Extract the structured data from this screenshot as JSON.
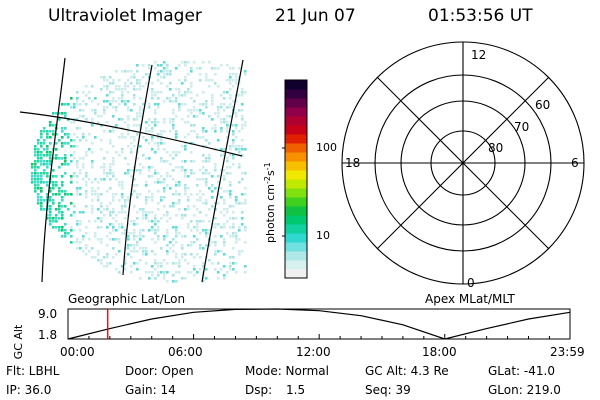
{
  "header": {
    "instrument": "Ultraviolet Imager",
    "date": "21 Jun 07",
    "time": "01:53:56 UT"
  },
  "colorbar": {
    "label_main": "photon cm",
    "label_exp1": "-2",
    "label_mid": "s",
    "label_exp2": "-1",
    "ticks": [
      "100",
      "10"
    ],
    "colors": [
      "#f0f0f0",
      "#d8f0f0",
      "#b0e8e8",
      "#70e0e0",
      "#30d8d0",
      "#10d0a0",
      "#00c870",
      "#10c040",
      "#40d020",
      "#80e010",
      "#c0e800",
      "#f0e800",
      "#f8c000",
      "#f89000",
      "#f06000",
      "#e02000",
      "#c80018",
      "#b00030",
      "#900048",
      "#600048",
      "#300040",
      "#100030"
    ]
  },
  "polar": {
    "mlt_labels": [
      "12",
      "18",
      "6",
      "0"
    ],
    "lat_labels": [
      "60",
      "70",
      "80"
    ]
  },
  "timeline": {
    "left_label": "Geographic Lat/Lon",
    "right_label": "Apex MLat/MLT",
    "y_axis_label": "GC Alt",
    "y_ticks": [
      "9.0",
      "1.8"
    ],
    "x_ticks": [
      "00:00",
      "06:00",
      "12:00",
      "18:00",
      "23:59"
    ]
  },
  "info": {
    "flt": "Flt: LBHL",
    "door": "Door: Open",
    "mode": "Mode: Normal",
    "gcalt": "GC Alt: 4.3 Re",
    "glat": "GLat: -41.0",
    "ip": "IP: 36.0",
    "gain": "Gain: 14",
    "dsp_label": "Dsp:",
    "dsp_value": "1.5",
    "seq": "Seq: 39",
    "glon": "GLon: 219.0"
  },
  "chart_data": {
    "type": "line",
    "title": "",
    "xlabel": "",
    "ylabel": "GC Alt",
    "xlim": [
      "00:00",
      "23:59"
    ],
    "ylim": [
      1.8,
      9.0
    ],
    "x": [
      "00:00",
      "02:00",
      "04:00",
      "06:00",
      "08:00",
      "10:00",
      "12:00",
      "14:00",
      "16:00",
      "18:00",
      "20:00",
      "22:00",
      "23:59"
    ],
    "series": [
      {
        "values": [
          1.8,
          4.3,
          6.6,
          8.2,
          8.9,
          9.0,
          8.6,
          7.4,
          5.2,
          1.8,
          4.3,
          6.6,
          8.2
        ]
      }
    ],
    "current_time_marker": "01:53:56"
  }
}
